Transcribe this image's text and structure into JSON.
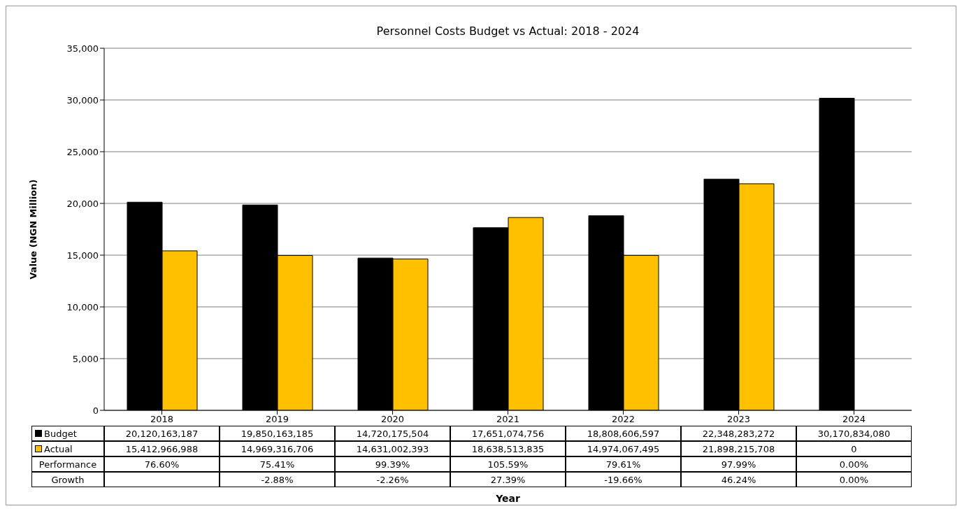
{
  "chart_data": {
    "type": "bar",
    "title": "Personnel Costs Budget vs Actual: 2018 - 2024",
    "ylabel": "Value (NGN Million)",
    "categories": [
      "2018",
      "2019",
      "2020",
      "2021",
      "2022",
      "2023",
      "2024"
    ],
    "series": [
      {
        "name": "Budget",
        "color": "#000000",
        "values": [
          20120,
          19850,
          14720,
          17651,
          18809,
          22348,
          30171
        ]
      },
      {
        "name": "Actual",
        "color": "#ffc000",
        "values": [
          15413,
          14969,
          14631,
          18639,
          14974,
          21898,
          0
        ]
      }
    ],
    "annotations": [
      "20,120,163,187",
      "19,850,163,185",
      "14,720,175,504",
      "17,651,074,756",
      "18,808,606,597",
      "22,348,283,272",
      "30,170,834,080",
      "15,412,966,988",
      "14,969,316,706",
      "14,631,002,393",
      "18,638,513,835",
      "14,974,067,495",
      "21,898,215,708",
      "0",
      "Performance",
      "76.60%",
      "75.41%",
      "99.39%",
      "105.59%",
      "79.61%",
      "97.99%",
      "0.00%",
      "Growth",
      "-2.88%",
      "-2.26%",
      "27.39%",
      "-19.66%",
      "46.24%",
      "0.00%",
      "Year"
    ],
    "ylim": [
      0,
      35000
    ],
    "yticks": [
      {
        "value": 0,
        "label": "0"
      },
      {
        "value": 5000,
        "label": "5,000"
      },
      {
        "value": 10000,
        "label": "10,000"
      },
      {
        "value": 15000,
        "label": "15,000"
      },
      {
        "value": 20000,
        "label": "20,000"
      },
      {
        "value": 25000,
        "label": "25,000"
      },
      {
        "value": 30000,
        "label": "30,000"
      },
      {
        "value": 35000,
        "label": "35,000"
      }
    ],
    "grid": "y",
    "legend": "bottom"
  }
}
